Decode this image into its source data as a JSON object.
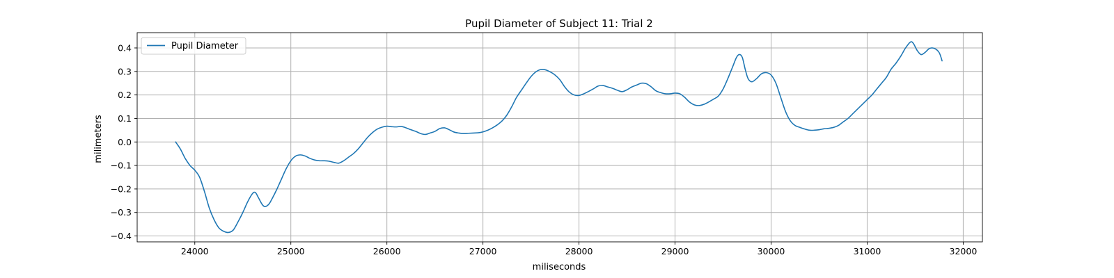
{
  "chart_data": {
    "type": "line",
    "title": "Pupil Diameter of Subject 11: Trial 2",
    "xlabel": "miliseconds",
    "ylabel": "milimeters",
    "xlim": [
      23400,
      32200
    ],
    "ylim": [
      -0.425,
      0.465
    ],
    "xticks": [
      24000,
      25000,
      26000,
      27000,
      28000,
      29000,
      30000,
      31000,
      32000
    ],
    "yticks": [
      -0.4,
      -0.3,
      -0.2,
      -0.1,
      0.0,
      0.1,
      0.2,
      0.3,
      0.4
    ],
    "xtick_labels": [
      "24000",
      "25000",
      "26000",
      "27000",
      "28000",
      "29000",
      "30000",
      "31000",
      "32000"
    ],
    "ytick_labels": [
      "−0.4",
      "−0.3",
      "−0.2",
      "−0.1",
      "0.0",
      "0.1",
      "0.2",
      "0.3",
      "0.4"
    ],
    "grid": true,
    "legend_position": "upper-left",
    "series": [
      {
        "name": "Pupil Diameter",
        "color": "#1f77b4",
        "points": [
          [
            23800,
            0.0
          ],
          [
            23850,
            -0.03
          ],
          [
            23900,
            -0.07
          ],
          [
            23950,
            -0.1
          ],
          [
            24000,
            -0.12
          ],
          [
            24050,
            -0.15
          ],
          [
            24100,
            -0.21
          ],
          [
            24150,
            -0.28
          ],
          [
            24200,
            -0.33
          ],
          [
            24250,
            -0.365
          ],
          [
            24300,
            -0.38
          ],
          [
            24350,
            -0.385
          ],
          [
            24400,
            -0.375
          ],
          [
            24450,
            -0.34
          ],
          [
            24500,
            -0.3
          ],
          [
            24550,
            -0.255
          ],
          [
            24600,
            -0.22
          ],
          [
            24630,
            -0.215
          ],
          [
            24660,
            -0.235
          ],
          [
            24700,
            -0.265
          ],
          [
            24730,
            -0.275
          ],
          [
            24770,
            -0.265
          ],
          [
            24800,
            -0.245
          ],
          [
            24850,
            -0.205
          ],
          [
            24900,
            -0.16
          ],
          [
            24950,
            -0.115
          ],
          [
            25000,
            -0.08
          ],
          [
            25050,
            -0.06
          ],
          [
            25100,
            -0.055
          ],
          [
            25150,
            -0.06
          ],
          [
            25200,
            -0.07
          ],
          [
            25250,
            -0.077
          ],
          [
            25300,
            -0.08
          ],
          [
            25350,
            -0.08
          ],
          [
            25400,
            -0.082
          ],
          [
            25450,
            -0.087
          ],
          [
            25500,
            -0.09
          ],
          [
            25550,
            -0.08
          ],
          [
            25600,
            -0.065
          ],
          [
            25650,
            -0.05
          ],
          [
            25700,
            -0.03
          ],
          [
            25750,
            -0.005
          ],
          [
            25800,
            0.02
          ],
          [
            25850,
            0.04
          ],
          [
            25900,
            0.055
          ],
          [
            25950,
            0.063
          ],
          [
            26000,
            0.067
          ],
          [
            26050,
            0.065
          ],
          [
            26100,
            0.064
          ],
          [
            26150,
            0.066
          ],
          [
            26200,
            0.06
          ],
          [
            26250,
            0.052
          ],
          [
            26300,
            0.045
          ],
          [
            26350,
            0.036
          ],
          [
            26400,
            0.032
          ],
          [
            26450,
            0.038
          ],
          [
            26500,
            0.045
          ],
          [
            26550,
            0.057
          ],
          [
            26600,
            0.06
          ],
          [
            26650,
            0.052
          ],
          [
            26700,
            0.042
          ],
          [
            26750,
            0.038
          ],
          [
            26800,
            0.036
          ],
          [
            26850,
            0.037
          ],
          [
            26900,
            0.038
          ],
          [
            26950,
            0.039
          ],
          [
            27000,
            0.043
          ],
          [
            27050,
            0.05
          ],
          [
            27100,
            0.06
          ],
          [
            27150,
            0.073
          ],
          [
            27200,
            0.09
          ],
          [
            27250,
            0.115
          ],
          [
            27300,
            0.15
          ],
          [
            27350,
            0.19
          ],
          [
            27400,
            0.22
          ],
          [
            27450,
            0.25
          ],
          [
            27500,
            0.278
          ],
          [
            27550,
            0.298
          ],
          [
            27600,
            0.308
          ],
          [
            27650,
            0.307
          ],
          [
            27700,
            0.298
          ],
          [
            27750,
            0.285
          ],
          [
            27800,
            0.265
          ],
          [
            27850,
            0.235
          ],
          [
            27900,
            0.212
          ],
          [
            27950,
            0.2
          ],
          [
            28000,
            0.198
          ],
          [
            28050,
            0.205
          ],
          [
            28100,
            0.215
          ],
          [
            28150,
            0.226
          ],
          [
            28200,
            0.238
          ],
          [
            28250,
            0.24
          ],
          [
            28300,
            0.234
          ],
          [
            28350,
            0.228
          ],
          [
            28400,
            0.22
          ],
          [
            28450,
            0.214
          ],
          [
            28500,
            0.222
          ],
          [
            28550,
            0.234
          ],
          [
            28600,
            0.242
          ],
          [
            28650,
            0.25
          ],
          [
            28700,
            0.248
          ],
          [
            28750,
            0.235
          ],
          [
            28800,
            0.218
          ],
          [
            28850,
            0.21
          ],
          [
            28900,
            0.205
          ],
          [
            28950,
            0.205
          ],
          [
            29000,
            0.208
          ],
          [
            29050,
            0.205
          ],
          [
            29100,
            0.19
          ],
          [
            29150,
            0.17
          ],
          [
            29200,
            0.158
          ],
          [
            29250,
            0.155
          ],
          [
            29300,
            0.16
          ],
          [
            29350,
            0.17
          ],
          [
            29400,
            0.182
          ],
          [
            29450,
            0.195
          ],
          [
            29500,
            0.225
          ],
          [
            29550,
            0.27
          ],
          [
            29600,
            0.32
          ],
          [
            29640,
            0.36
          ],
          [
            29670,
            0.372
          ],
          [
            29700,
            0.36
          ],
          [
            29730,
            0.31
          ],
          [
            29760,
            0.27
          ],
          [
            29800,
            0.256
          ],
          [
            29850,
            0.27
          ],
          [
            29900,
            0.29
          ],
          [
            29950,
            0.295
          ],
          [
            30000,
            0.285
          ],
          [
            30050,
            0.25
          ],
          [
            30100,
            0.19
          ],
          [
            30150,
            0.13
          ],
          [
            30200,
            0.09
          ],
          [
            30250,
            0.07
          ],
          [
            30300,
            0.062
          ],
          [
            30350,
            0.055
          ],
          [
            30400,
            0.05
          ],
          [
            30450,
            0.05
          ],
          [
            30500,
            0.052
          ],
          [
            30550,
            0.056
          ],
          [
            30600,
            0.058
          ],
          [
            30650,
            0.062
          ],
          [
            30700,
            0.07
          ],
          [
            30750,
            0.085
          ],
          [
            30800,
            0.1
          ],
          [
            30850,
            0.12
          ],
          [
            30900,
            0.14
          ],
          [
            30950,
            0.16
          ],
          [
            31000,
            0.18
          ],
          [
            31050,
            0.2
          ],
          [
            31100,
            0.225
          ],
          [
            31150,
            0.25
          ],
          [
            31200,
            0.275
          ],
          [
            31250,
            0.31
          ],
          [
            31300,
            0.335
          ],
          [
            31350,
            0.365
          ],
          [
            31400,
            0.4
          ],
          [
            31450,
            0.425
          ],
          [
            31480,
            0.42
          ],
          [
            31520,
            0.39
          ],
          [
            31560,
            0.372
          ],
          [
            31600,
            0.38
          ],
          [
            31650,
            0.398
          ],
          [
            31700,
            0.398
          ],
          [
            31750,
            0.38
          ],
          [
            31780,
            0.345
          ]
        ]
      }
    ]
  }
}
